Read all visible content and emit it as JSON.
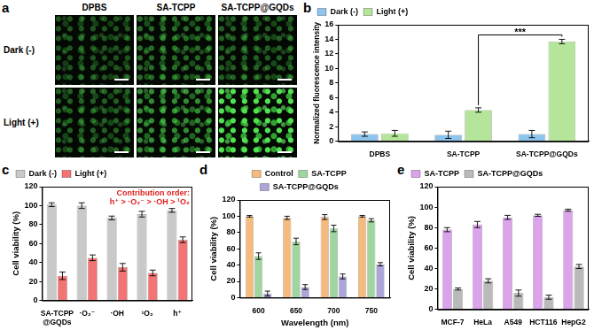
{
  "panel_a": {
    "panel_label": "a",
    "columns": [
      "DPBS",
      "SA-TCPP",
      "SA-TCPP@GQDs"
    ],
    "rows": [
      "Dark (-)",
      "Light (+)"
    ]
  },
  "chart_data": [
    {
      "panel_label": "b",
      "type": "bar",
      "categories": [
        "DPBS",
        "SA-TCPP",
        "SA-TCPP@GQDs"
      ],
      "series": [
        {
          "name": "Dark (-)",
          "color": "#8cc4ee",
          "values": [
            1.0,
            0.9,
            1.0
          ],
          "errors": [
            0.3,
            0.5,
            0.5
          ]
        },
        {
          "name": "Light (+)",
          "color": "#b5e59a",
          "values": [
            1.1,
            4.3,
            13.7
          ],
          "errors": [
            0.4,
            0.3,
            0.3
          ]
        }
      ],
      "y_label": "Normalized fluorescence intensity",
      "ylim": [
        0,
        16
      ],
      "yticks": [
        0,
        2,
        4,
        6,
        8,
        10,
        12,
        14,
        16
      ],
      "grid": false,
      "legend": "top-left",
      "annotations": [
        {
          "text": "***",
          "between": [
            "SA-TCPP",
            "SA-TCPP@GQDs"
          ],
          "series": "Light (+)"
        }
      ]
    },
    {
      "panel_label": "c",
      "type": "bar",
      "categories": [
        "SA-TCPP@GQDs",
        "·O₂⁻",
        "·OH",
        "¹O₂",
        "h⁺"
      ],
      "series": [
        {
          "name": "Dark (-)",
          "color": "#c9c9c9",
          "values": [
            101,
            100,
            87,
            91,
            95
          ],
          "errors": [
            2,
            3,
            2,
            3,
            2
          ]
        },
        {
          "name": "Light (+)",
          "color": "#f27474",
          "values": [
            26,
            45,
            35,
            29,
            64
          ],
          "errors": [
            4,
            3,
            4,
            3,
            3
          ]
        }
      ],
      "y_label": "Cell viability (%)",
      "ylim": [
        0,
        120
      ],
      "yticks": [
        0,
        20,
        40,
        60,
        80,
        100,
        120
      ],
      "grid": false,
      "legend": "top-left",
      "annotations": [
        {
          "text": "Contribution order:",
          "color": "#e02020"
        },
        {
          "text": "h⁺ > ·O₂⁻ > ·OH > ¹O₂",
          "color": "#e02020"
        }
      ]
    },
    {
      "panel_label": "d",
      "type": "bar",
      "categories": [
        "600",
        "650",
        "700",
        "750"
      ],
      "series": [
        {
          "name": "Control",
          "color": "#f6ba7e",
          "values": [
            100,
            98,
            99,
            100
          ],
          "errors": [
            1,
            2,
            3,
            1
          ]
        },
        {
          "name": "SA-TCPP",
          "color": "#9fd69f",
          "values": [
            51,
            69,
            85,
            95
          ],
          "errors": [
            4,
            4,
            4,
            2
          ]
        },
        {
          "name": "SA-TCPP@GQDs",
          "color": "#aba5da",
          "values": [
            5,
            13,
            26,
            41
          ],
          "errors": [
            3,
            3,
            3,
            2
          ]
        }
      ],
      "x_label": "Wavelength (nm)",
      "y_label": "Cell viability (%)",
      "ylim": [
        0,
        120
      ],
      "yticks": [
        0,
        20,
        40,
        60,
        80,
        100,
        120
      ],
      "grid": false,
      "legend": "top"
    },
    {
      "panel_label": "e",
      "type": "bar",
      "categories": [
        "MCF-7",
        "HeLa",
        "A549",
        "HCT116",
        "HepG2"
      ],
      "series": [
        {
          "name": "SA-TCPP",
          "color": "#dba3ea",
          "values": [
            78,
            83,
            90,
            92,
            97
          ],
          "errors": [
            2,
            3,
            2,
            1,
            1
          ]
        },
        {
          "name": "SA-TCPP@GQDs",
          "color": "#bababa",
          "values": [
            20,
            28,
            16,
            12,
            42
          ],
          "errors": [
            1,
            2,
            3,
            2,
            2
          ]
        }
      ],
      "y_label": "Cell viability (%)",
      "ylim": [
        0,
        120
      ],
      "yticks": [
        0,
        20,
        40,
        60,
        80,
        100,
        120
      ],
      "grid": false,
      "legend": "top-left"
    }
  ]
}
